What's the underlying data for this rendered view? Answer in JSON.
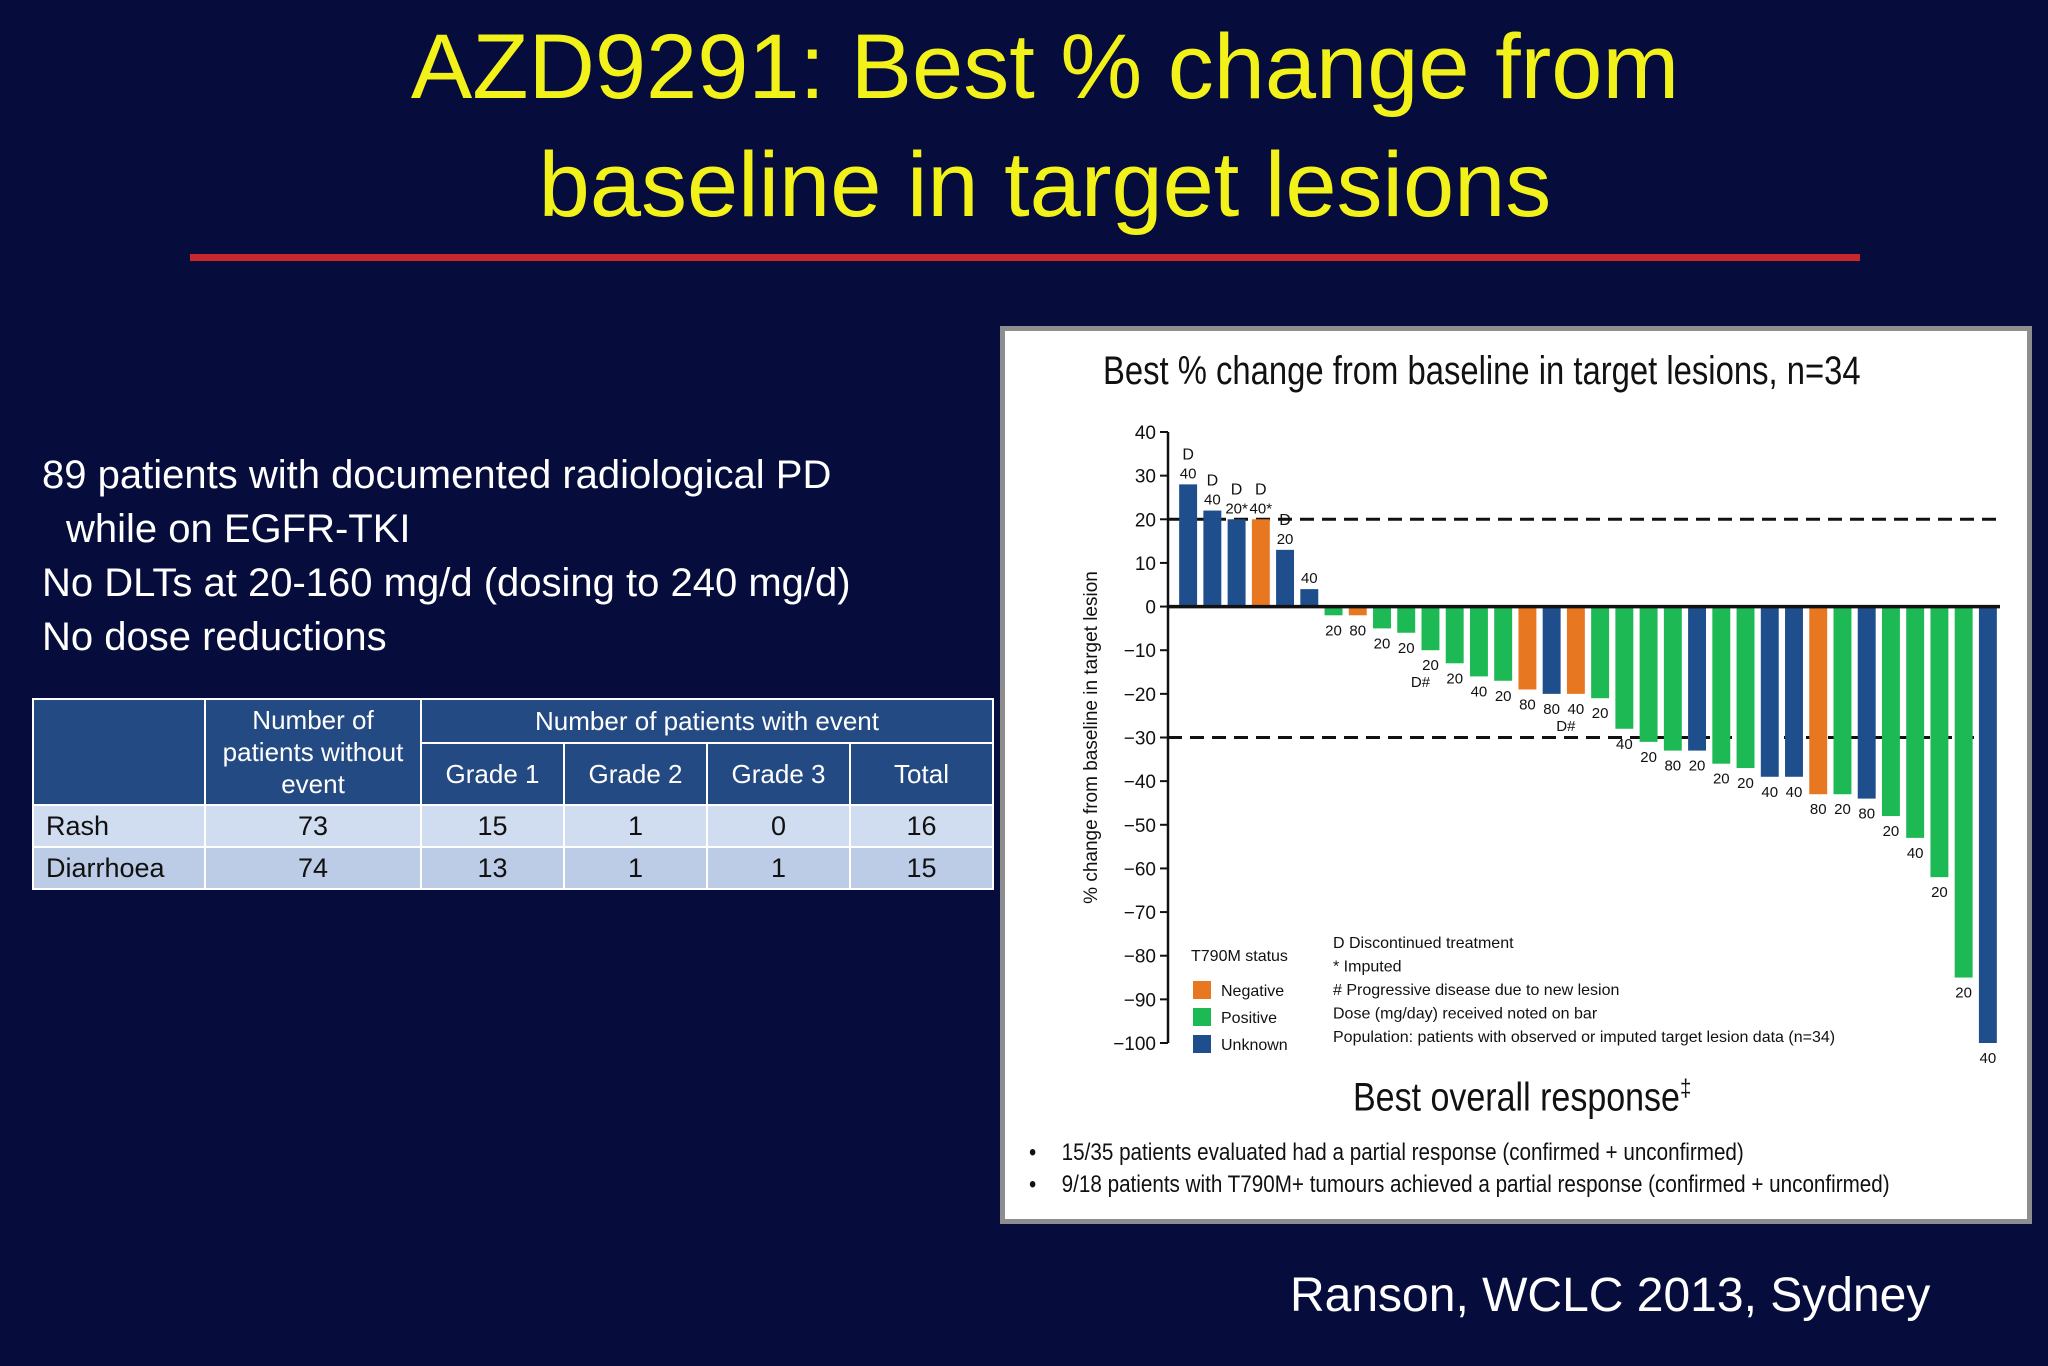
{
  "slide": {
    "title_line1": "AZD9291: Best % change from",
    "title_line2": "baseline in target lesions",
    "bullets": [
      "89 patients with documented radiological  PD",
      "while on EGFR-TKI",
      "No DLTs at 20-160 mg/d (dosing to 240 mg/d)",
      "No dose reductions"
    ],
    "citation": "Ranson, WCLC 2013, Sydney"
  },
  "table": {
    "col_without": [
      "Number of",
      "patients without",
      "event"
    ],
    "col_with_event": "Number of patients with event",
    "grades": [
      "Grade 1",
      "Grade 2",
      "Grade 3",
      "Total"
    ],
    "rows": [
      {
        "label": "Rash",
        "without": "73",
        "g1": "15",
        "g2": "1",
        "g3": "0",
        "total": "16"
      },
      {
        "label": "Diarrhoea",
        "without": "74",
        "g1": "13",
        "g2": "1",
        "g3": "1",
        "total": "15"
      }
    ]
  },
  "chart_data": {
    "type": "bar",
    "title": "Best % change from baseline in target lesions, n=34",
    "ylabel": "% change from baseline in target lesion",
    "ylim": [
      -100,
      40
    ],
    "yticks": [
      "40",
      "30",
      "20",
      "10",
      "0",
      "−10",
      "−20",
      "−30",
      "−40",
      "−50",
      "−60",
      "−70",
      "−80",
      "−90",
      "−100"
    ],
    "reference_lines": [
      20,
      -30
    ],
    "colors": {
      "Negative": "#e87722",
      "Positive": "#1db954",
      "Unknown": "#1f4e8c"
    },
    "bars": [
      {
        "value": 28,
        "status": "Unknown",
        "dose": "40",
        "marks": "D"
      },
      {
        "value": 22,
        "status": "Unknown",
        "dose": "40",
        "marks": "D"
      },
      {
        "value": 20,
        "status": "Unknown",
        "dose": "20*",
        "marks": "D"
      },
      {
        "value": 20,
        "status": "Negative",
        "dose": "40*",
        "marks": "D"
      },
      {
        "value": 13,
        "status": "Unknown",
        "dose": "20",
        "marks": "D"
      },
      {
        "value": 4,
        "status": "Unknown",
        "dose": "40",
        "marks": ""
      },
      {
        "value": -2,
        "status": "Positive",
        "dose": "20",
        "marks": ""
      },
      {
        "value": -2,
        "status": "Negative",
        "dose": "80",
        "marks": ""
      },
      {
        "value": -5,
        "status": "Positive",
        "dose": "20",
        "marks": ""
      },
      {
        "value": -6,
        "status": "Positive",
        "dose": "20",
        "marks": ""
      },
      {
        "value": -10,
        "status": "Positive",
        "dose": "20",
        "marks": "D#"
      },
      {
        "value": -13,
        "status": "Positive",
        "dose": "20",
        "marks": ""
      },
      {
        "value": -16,
        "status": "Positive",
        "dose": "40",
        "marks": ""
      },
      {
        "value": -17,
        "status": "Positive",
        "dose": "20",
        "marks": ""
      },
      {
        "value": -19,
        "status": "Negative",
        "dose": "80",
        "marks": ""
      },
      {
        "value": -20,
        "status": "Unknown",
        "dose": "80",
        "marks": ""
      },
      {
        "value": -20,
        "status": "Negative",
        "dose": "40",
        "marks": "D#"
      },
      {
        "value": -21,
        "status": "Positive",
        "dose": "20",
        "marks": ""
      },
      {
        "value": -28,
        "status": "Positive",
        "dose": "40",
        "marks": ""
      },
      {
        "value": -31,
        "status": "Positive",
        "dose": "20",
        "marks": ""
      },
      {
        "value": -33,
        "status": "Positive",
        "dose": "80",
        "marks": ""
      },
      {
        "value": -33,
        "status": "Unknown",
        "dose": "20",
        "marks": ""
      },
      {
        "value": -36,
        "status": "Positive",
        "dose": "20",
        "marks": ""
      },
      {
        "value": -37,
        "status": "Positive",
        "dose": "20",
        "marks": ""
      },
      {
        "value": -39,
        "status": "Unknown",
        "dose": "40",
        "marks": ""
      },
      {
        "value": -39,
        "status": "Unknown",
        "dose": "40",
        "marks": ""
      },
      {
        "value": -43,
        "status": "Negative",
        "dose": "80",
        "marks": ""
      },
      {
        "value": -43,
        "status": "Positive",
        "dose": "20",
        "marks": ""
      },
      {
        "value": -44,
        "status": "Unknown",
        "dose": "80",
        "marks": ""
      },
      {
        "value": -48,
        "status": "Positive",
        "dose": "20",
        "marks": ""
      },
      {
        "value": -53,
        "status": "Positive",
        "dose": "40",
        "marks": ""
      },
      {
        "value": -62,
        "status": "Positive",
        "dose": "20",
        "marks": ""
      },
      {
        "value": -85,
        "status": "Positive",
        "dose": "20",
        "marks": ""
      },
      {
        "value": -100,
        "status": "Unknown",
        "dose": "40",
        "marks": ""
      }
    ],
    "legend_title": "T790M status",
    "legend": [
      "Negative",
      "Positive",
      "Unknown"
    ],
    "notes": [
      "D    Discontinued treatment",
      "*     Imputed",
      "#    Progressive disease due to new lesion",
      "Dose (mg/day) received noted on bar",
      "Population: patients with observed or imputed target lesion data (n=34)"
    ],
    "response_heading": "Best overall response",
    "response_heading_sup": "‡",
    "response_bullets": [
      "15/35 patients evaluated had a partial response (confirmed + unconfirmed)",
      "9/18 patients with T790M+ tumours achieved a partial response (confirmed + unconfirmed)"
    ],
    "bullet_char": "•"
  }
}
